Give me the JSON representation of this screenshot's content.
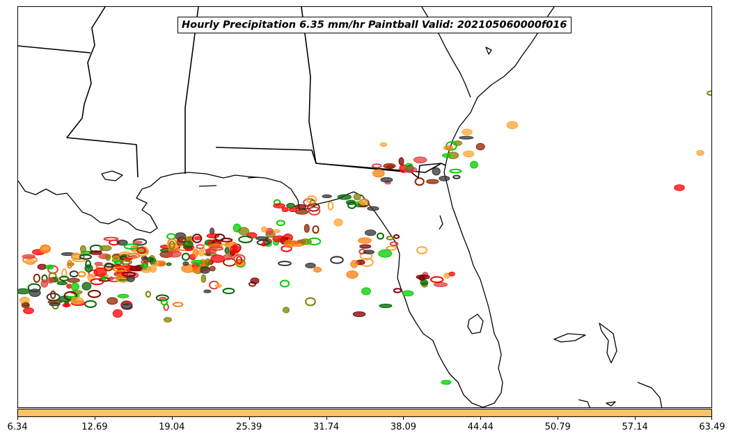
{
  "title": "Hourly Precipitation 6.35 mm/hr Paintball Valid: 202105060000f016",
  "colorbar": {
    "color": "#ffc266",
    "tick_labels": [
      "6.34",
      "12.69",
      "19.04",
      "25.39",
      "31.74",
      "38.09",
      "44.44",
      "50.79",
      "57.14",
      "63.49"
    ]
  },
  "palette": {
    "red": "#ff0000",
    "orange": "#ff7f0e",
    "light_orange": "#ffa533",
    "maroon": "#7f0000",
    "brown": "#8b2500",
    "olive": "#808000",
    "green": "#00cc00",
    "dark_green": "#006400",
    "dark_gray": "#333333",
    "pink_red": "#e04040"
  }
}
